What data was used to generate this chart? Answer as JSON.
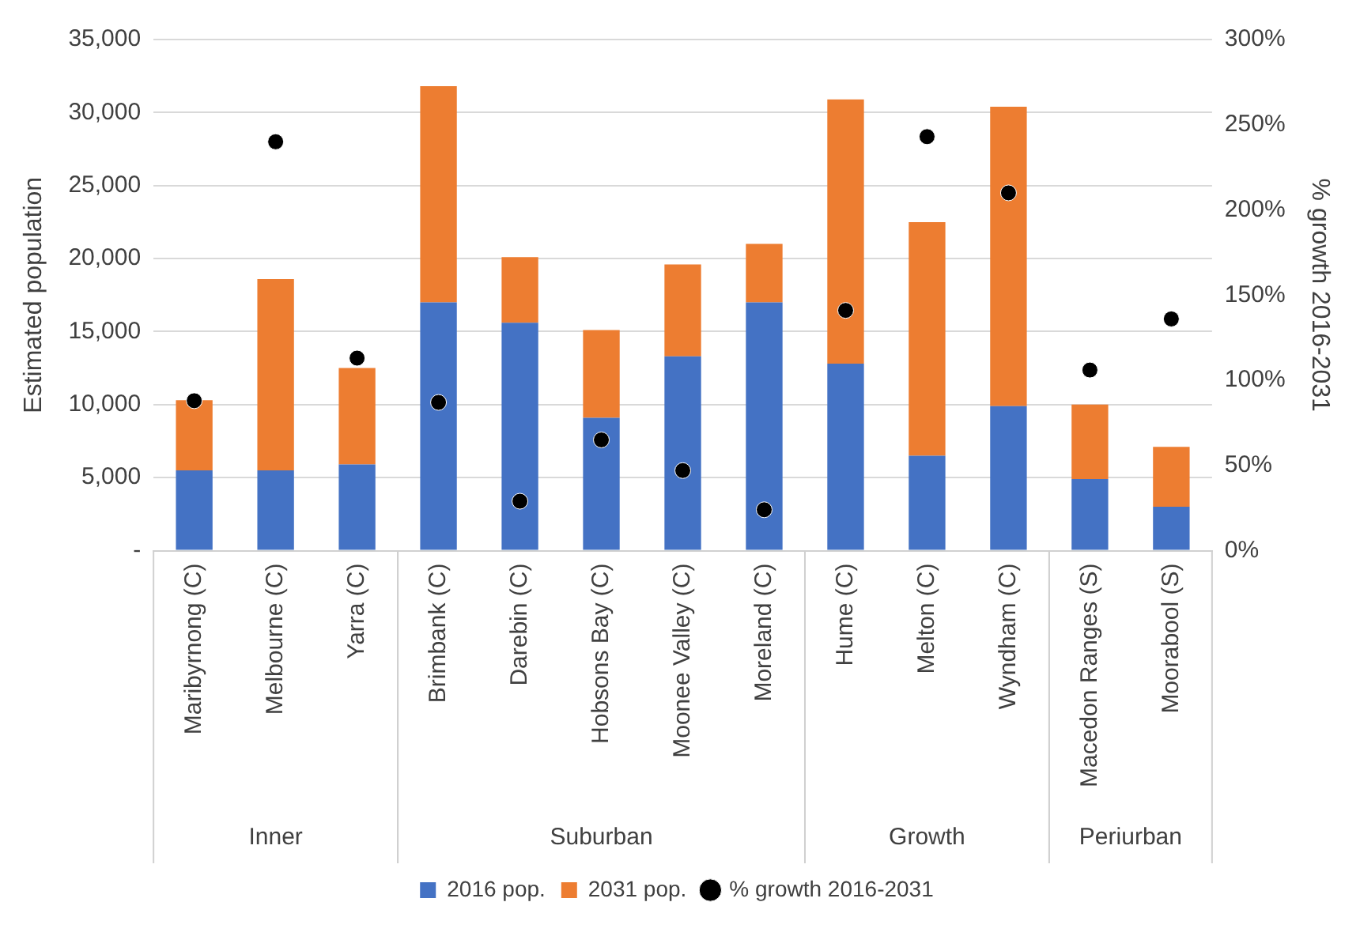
{
  "chart_data": {
    "type": "bar",
    "stacked": true,
    "ylabel": "Estimated population",
    "y2label": "% growth 2016-2031",
    "categories": [
      "Maribyrnong (C)",
      "Melbourne (C)",
      "Yarra (C)",
      "Brimbank (C)",
      "Darebin (C)",
      "Hobsons Bay (C)",
      "Moonee Valley (C)",
      "Moreland (C)",
      "Hume (C)",
      "Melton (C)",
      "Wyndham (C)",
      "Macedon Ranges (S)",
      "Moorabool (S)"
    ],
    "series": [
      {
        "name": "2016 pop.",
        "color": "#4472c4",
        "values": [
          5500,
          5500,
          5900,
          17000,
          15600,
          9100,
          13300,
          17000,
          12800,
          6500,
          9900,
          4900,
          3000
        ]
      },
      {
        "name": "2031 pop.",
        "color": "#ed7d31",
        "values": [
          4800,
          13100,
          6600,
          14800,
          4500,
          6000,
          6300,
          4000,
          18100,
          16000,
          20500,
          5100,
          4100
        ]
      },
      {
        "name": "% growth 2016-2031",
        "type": "scatter",
        "axis": "y2",
        "color": "#000000",
        "marker": "circle",
        "values": [
          88,
          240,
          113,
          87,
          29,
          65,
          47,
          24,
          141,
          243,
          210,
          106,
          136
        ]
      }
    ],
    "ylim": [
      0,
      35000
    ],
    "yticks": [
      {
        "value": 0,
        "label": "-"
      },
      {
        "value": 5000,
        "label": "5,000"
      },
      {
        "value": 10000,
        "label": "10,000"
      },
      {
        "value": 15000,
        "label": "15,000"
      },
      {
        "value": 20000,
        "label": "20,000"
      },
      {
        "value": 25000,
        "label": "25,000"
      },
      {
        "value": 30000,
        "label": "30,000"
      },
      {
        "value": 35000,
        "label": "35,000"
      }
    ],
    "y2lim": [
      0,
      300
    ],
    "y2ticks": [
      {
        "value": 0,
        "label": "0%"
      },
      {
        "value": 50,
        "label": "50%"
      },
      {
        "value": 100,
        "label": "100%"
      },
      {
        "value": 150,
        "label": "150%"
      },
      {
        "value": 200,
        "label": "200%"
      },
      {
        "value": 250,
        "label": "250%"
      },
      {
        "value": 300,
        "label": "300%"
      }
    ],
    "grid": "y",
    "legend": "bottom",
    "annotations": [
      "Inner",
      "Suburban",
      "Growth",
      "Periurban"
    ]
  }
}
